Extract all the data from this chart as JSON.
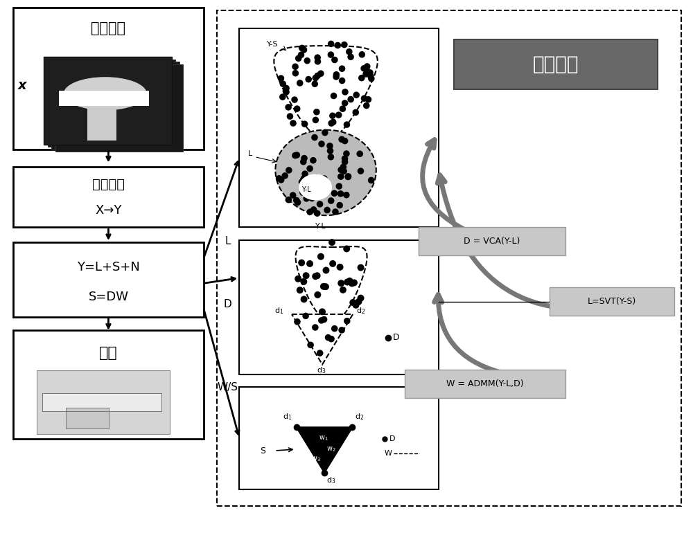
{
  "left_box1_text_cn": "热图序列",
  "left_box2_text_cn": "小波分析",
  "left_box2_eq": "X→Y",
  "left_box3_eq1": "Y=L+S+N",
  "left_box3_eq2": "S=DW",
  "left_box4_cn": "结果",
  "iter_box_cn": "迭代更新",
  "label_x": "x",
  "label_L": "L",
  "label_D": "D",
  "label_WS": "W/S",
  "eq1_label": "D = VCA(Y-L)",
  "eq2_label": "L=SVT(Y-S)",
  "eq3_label": "W = ADMM(Y-L,D)",
  "bg_color": "#ffffff",
  "dark_gray": "#555555",
  "mid_gray": "#888888",
  "light_gray": "#cccccc",
  "iter_gray": "#686868",
  "label_gray": "#c0c0c0"
}
